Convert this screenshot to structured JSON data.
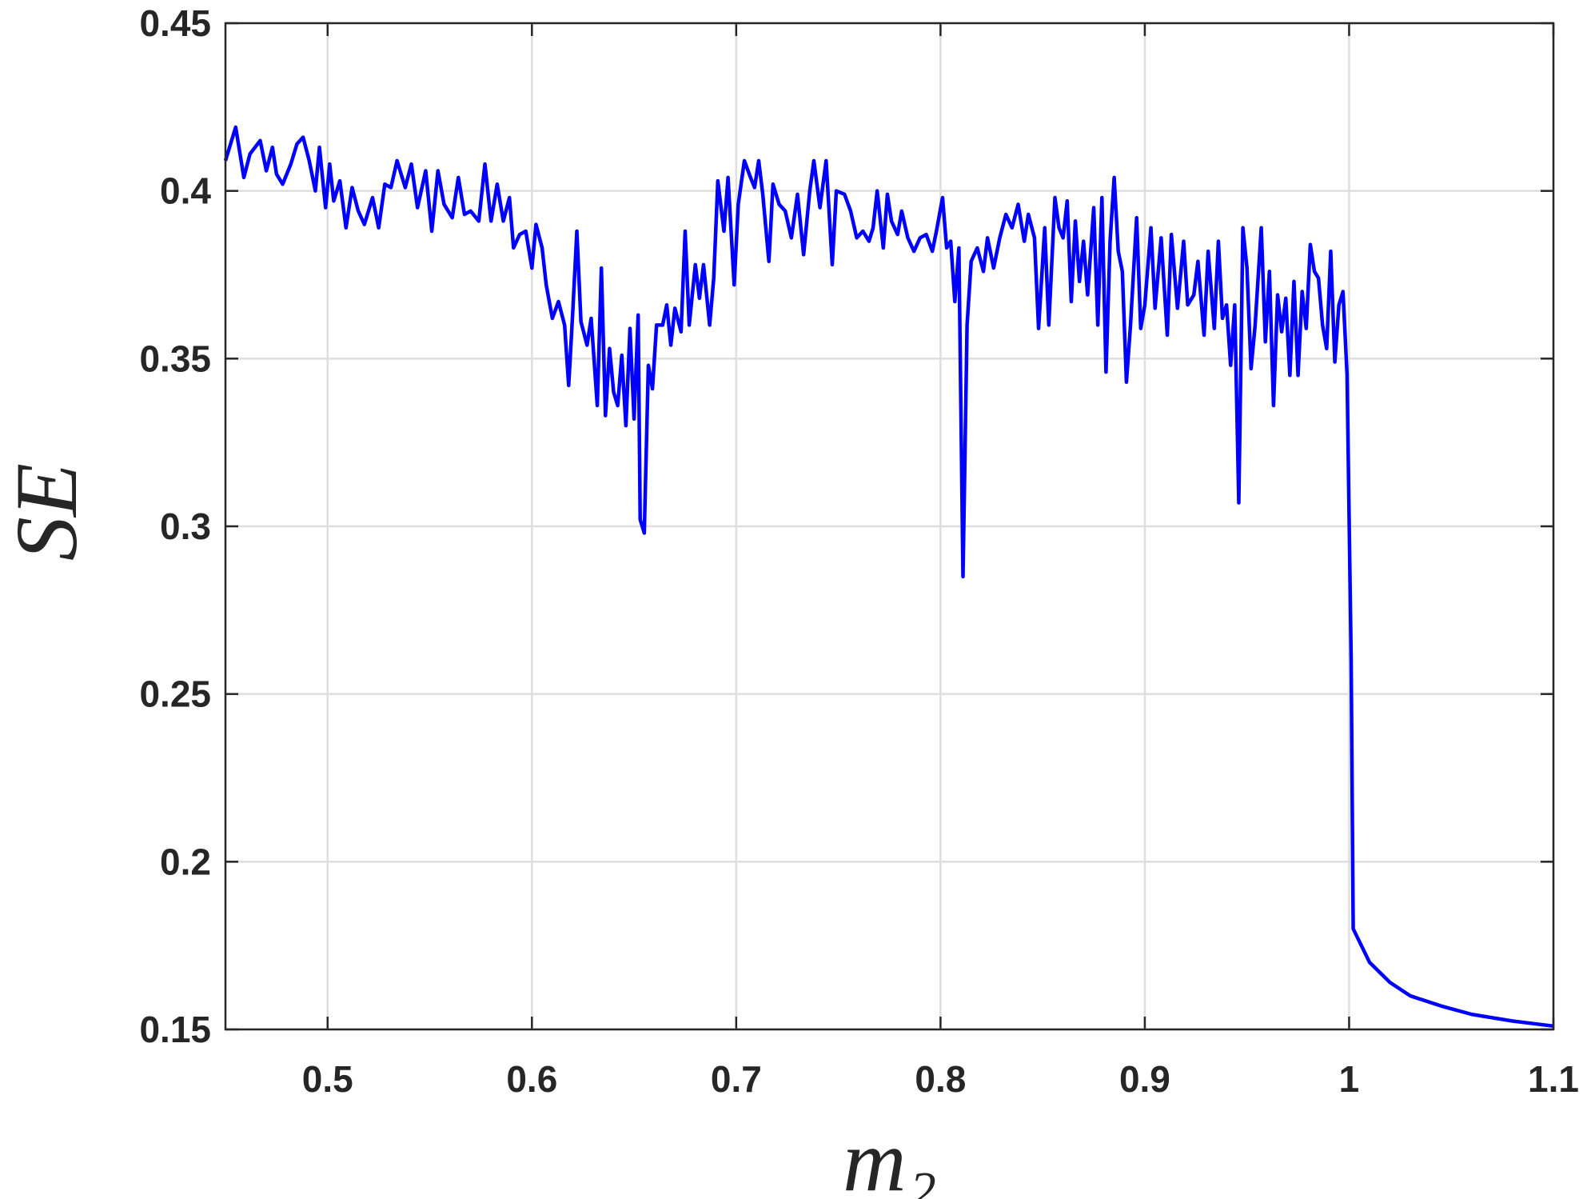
{
  "chart_data": {
    "type": "line",
    "xlabel": "m₂",
    "ylabel": "SE",
    "xlim": [
      0.45,
      1.1
    ],
    "ylim": [
      0.15,
      0.45
    ],
    "xticks": [
      0.5,
      0.6,
      0.7,
      0.8,
      0.9,
      1,
      1.1
    ],
    "yticks": [
      0.15,
      0.2,
      0.25,
      0.3,
      0.35,
      0.4,
      0.45
    ],
    "grid": true,
    "series": [
      {
        "color": "#0000ff",
        "x": [
          0.45,
          0.455,
          0.459,
          0.462,
          0.467,
          0.47,
          0.473,
          0.475,
          0.478,
          0.482,
          0.485,
          0.488,
          0.491,
          0.494,
          0.496,
          0.499,
          0.501,
          0.503,
          0.506,
          0.509,
          0.512,
          0.515,
          0.518,
          0.522,
          0.525,
          0.528,
          0.531,
          0.534,
          0.538,
          0.541,
          0.544,
          0.548,
          0.551,
          0.554,
          0.557,
          0.561,
          0.564,
          0.567,
          0.57,
          0.574,
          0.577,
          0.58,
          0.583,
          0.586,
          0.589,
          0.591,
          0.594,
          0.597,
          0.6,
          0.602,
          0.605,
          0.607,
          0.61,
          0.613,
          0.616,
          0.618,
          0.62,
          0.622,
          0.624,
          0.627,
          0.629,
          0.632,
          0.634,
          0.636,
          0.638,
          0.64,
          0.642,
          0.644,
          0.646,
          0.648,
          0.65,
          0.652,
          0.653,
          0.655,
          0.657,
          0.659,
          0.661,
          0.664,
          0.666,
          0.668,
          0.67,
          0.673,
          0.675,
          0.677,
          0.68,
          0.682,
          0.684,
          0.687,
          0.689,
          0.691,
          0.694,
          0.696,
          0.699,
          0.701,
          0.704,
          0.707,
          0.709,
          0.711,
          0.713,
          0.716,
          0.718,
          0.721,
          0.724,
          0.727,
          0.73,
          0.733,
          0.736,
          0.738,
          0.741,
          0.744,
          0.747,
          0.749,
          0.753,
          0.756,
          0.759,
          0.762,
          0.765,
          0.767,
          0.769,
          0.772,
          0.774,
          0.776,
          0.779,
          0.781,
          0.784,
          0.787,
          0.79,
          0.793,
          0.796,
          0.798,
          0.801,
          0.803,
          0.805,
          0.807,
          0.809,
          0.811,
          0.813,
          0.815,
          0.818,
          0.821,
          0.823,
          0.826,
          0.829,
          0.832,
          0.835,
          0.838,
          0.841,
          0.843,
          0.846,
          0.848,
          0.851,
          0.853,
          0.856,
          0.858,
          0.86,
          0.862,
          0.864,
          0.866,
          0.868,
          0.87,
          0.872,
          0.875,
          0.877,
          0.879,
          0.881,
          0.883,
          0.885,
          0.887,
          0.889,
          0.891,
          0.893,
          0.896,
          0.898,
          0.9,
          0.903,
          0.905,
          0.908,
          0.911,
          0.913,
          0.916,
          0.919,
          0.921,
          0.924,
          0.926,
          0.929,
          0.931,
          0.934,
          0.936,
          0.938,
          0.94,
          0.942,
          0.944,
          0.946,
          0.948,
          0.95,
          0.952,
          0.954,
          0.957,
          0.959,
          0.961,
          0.963,
          0.965,
          0.967,
          0.969,
          0.971,
          0.973,
          0.975,
          0.977,
          0.979,
          0.981,
          0.983,
          0.985,
          0.987,
          0.989,
          0.991,
          0.993,
          0.995,
          0.997,
          0.999,
          1.001,
          1.002,
          1.01,
          1.02,
          1.03,
          1.045,
          1.06,
          1.08,
          1.1
        ],
        "values": [
          0.409,
          0.419,
          0.404,
          0.411,
          0.415,
          0.406,
          0.413,
          0.405,
          0.402,
          0.408,
          0.414,
          0.416,
          0.409,
          0.4,
          0.413,
          0.395,
          0.408,
          0.397,
          0.403,
          0.389,
          0.401,
          0.394,
          0.39,
          0.398,
          0.389,
          0.402,
          0.401,
          0.409,
          0.401,
          0.408,
          0.395,
          0.406,
          0.388,
          0.406,
          0.396,
          0.392,
          0.404,
          0.393,
          0.394,
          0.391,
          0.408,
          0.391,
          0.402,
          0.391,
          0.398,
          0.383,
          0.387,
          0.388,
          0.377,
          0.39,
          0.383,
          0.372,
          0.362,
          0.367,
          0.36,
          0.342,
          0.364,
          0.388,
          0.361,
          0.354,
          0.362,
          0.336,
          0.377,
          0.333,
          0.353,
          0.34,
          0.336,
          0.351,
          0.33,
          0.359,
          0.332,
          0.363,
          0.302,
          0.298,
          0.348,
          0.341,
          0.36,
          0.36,
          0.366,
          0.354,
          0.365,
          0.358,
          0.388,
          0.36,
          0.378,
          0.368,
          0.378,
          0.36,
          0.374,
          0.403,
          0.388,
          0.404,
          0.372,
          0.396,
          0.409,
          0.404,
          0.401,
          0.409,
          0.399,
          0.379,
          0.402,
          0.396,
          0.394,
          0.386,
          0.399,
          0.381,
          0.4,
          0.409,
          0.395,
          0.409,
          0.378,
          0.4,
          0.399,
          0.394,
          0.386,
          0.388,
          0.385,
          0.389,
          0.4,
          0.383,
          0.399,
          0.391,
          0.387,
          0.394,
          0.386,
          0.382,
          0.386,
          0.387,
          0.382,
          0.388,
          0.398,
          0.383,
          0.385,
          0.367,
          0.383,
          0.285,
          0.36,
          0.379,
          0.383,
          0.376,
          0.386,
          0.377,
          0.386,
          0.393,
          0.389,
          0.396,
          0.385,
          0.393,
          0.386,
          0.359,
          0.389,
          0.36,
          0.398,
          0.389,
          0.386,
          0.397,
          0.367,
          0.391,
          0.373,
          0.385,
          0.369,
          0.395,
          0.36,
          0.398,
          0.346,
          0.385,
          0.404,
          0.382,
          0.376,
          0.343,
          0.36,
          0.392,
          0.359,
          0.366,
          0.389,
          0.365,
          0.386,
          0.357,
          0.387,
          0.365,
          0.385,
          0.366,
          0.369,
          0.379,
          0.357,
          0.382,
          0.359,
          0.385,
          0.362,
          0.366,
          0.348,
          0.366,
          0.307,
          0.389,
          0.377,
          0.347,
          0.36,
          0.389,
          0.355,
          0.376,
          0.336,
          0.369,
          0.358,
          0.368,
          0.345,
          0.373,
          0.345,
          0.37,
          0.359,
          0.384,
          0.376,
          0.374,
          0.36,
          0.353,
          0.382,
          0.349,
          0.366,
          0.37,
          0.345,
          0.26,
          0.18,
          0.17,
          0.164,
          0.16,
          0.157,
          0.1545,
          0.1525,
          0.151
        ]
      }
    ]
  }
}
